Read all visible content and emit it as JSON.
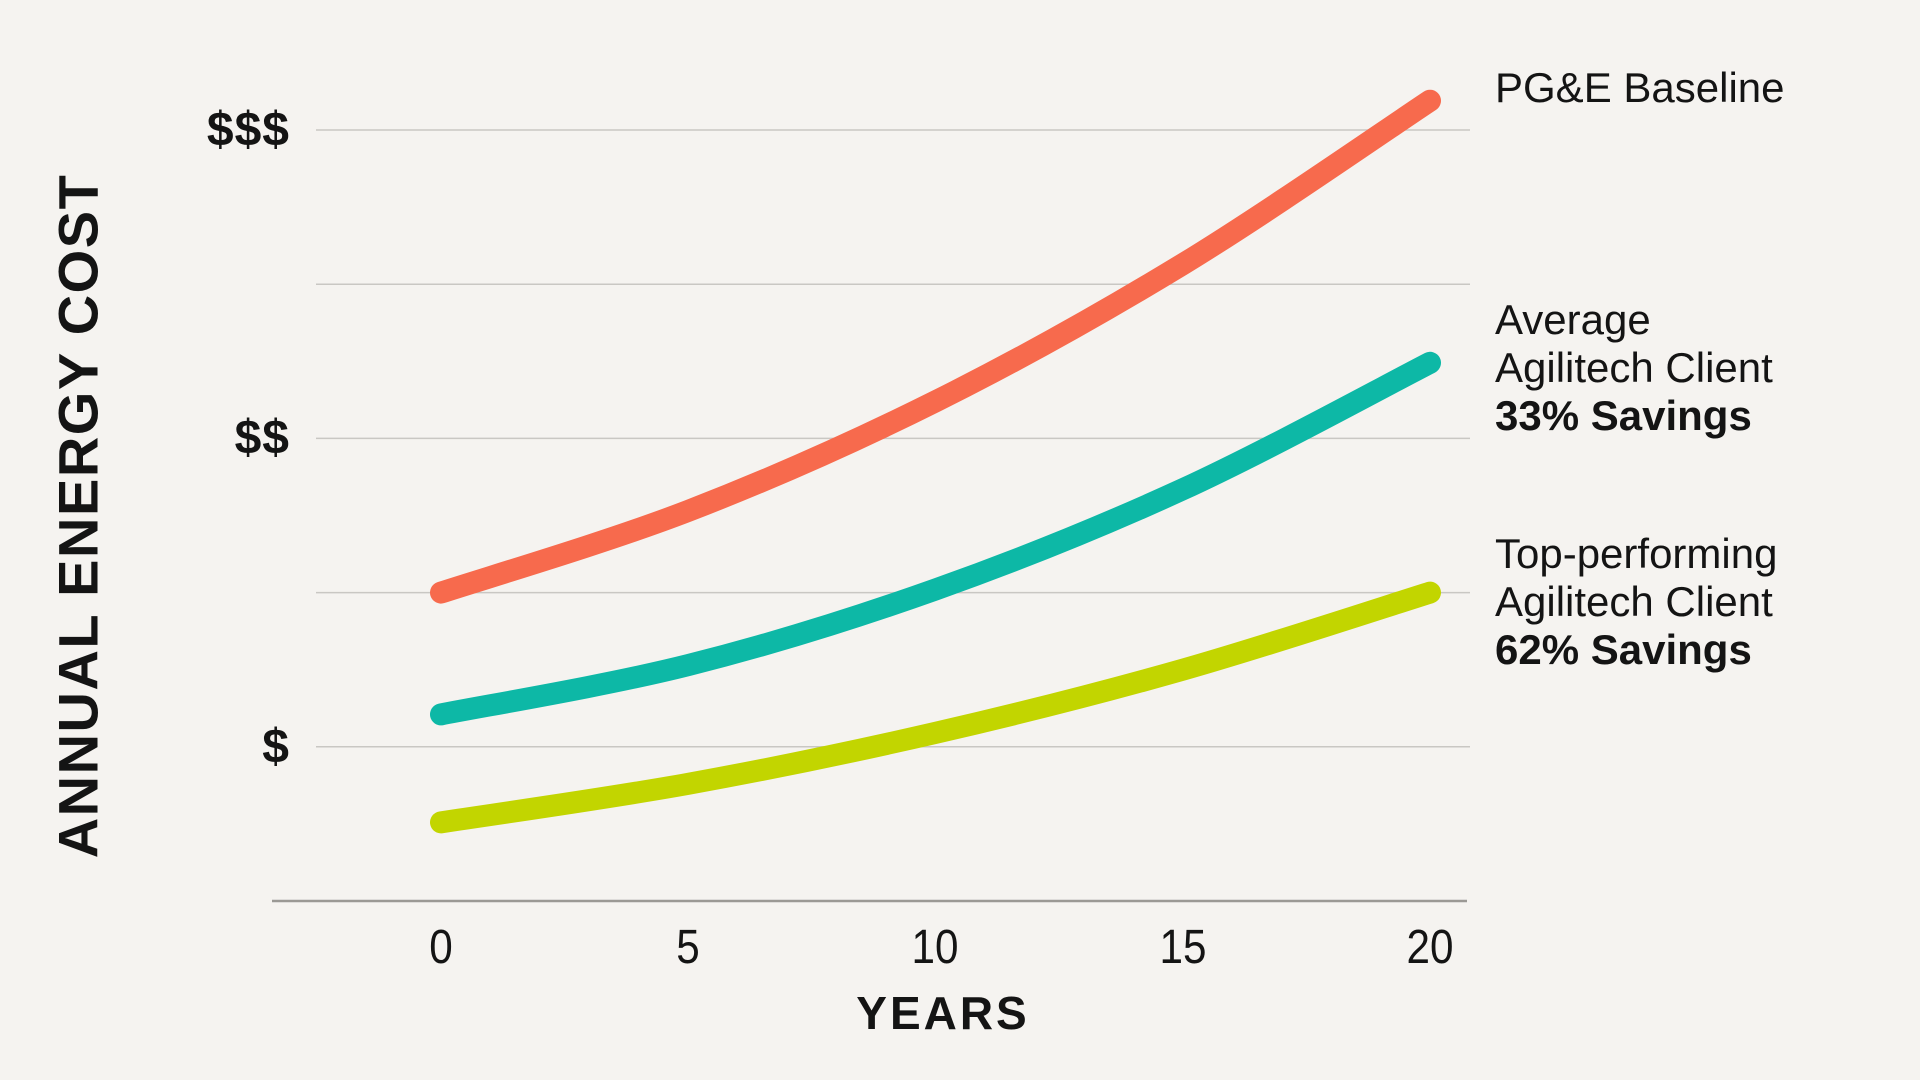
{
  "page": {
    "background_color": "#F5F3F0",
    "text_color": "#141414",
    "gridline_color": "#C9C7C3",
    "axis_line_color": "#9B9995"
  },
  "y_axis": {
    "title": "ANNUAL ENERGY COST",
    "tick_labels_top_to_bottom": [
      "$$$",
      "$$",
      "$"
    ]
  },
  "x_axis": {
    "title": "YEARS",
    "tick_labels": [
      "0",
      "5",
      "10",
      "15",
      "20"
    ]
  },
  "legend": [
    {
      "lines": [
        "PG&E Baseline"
      ],
      "emphasis": "",
      "color": "#F76A4D"
    },
    {
      "lines": [
        "Average",
        "Agilitech Client"
      ],
      "emphasis": "33% Savings",
      "color": "#0DB8A6"
    },
    {
      "lines": [
        "Top-performing",
        "Agilitech Client"
      ],
      "emphasis": "62% Savings",
      "color": "#C2D500"
    }
  ],
  "chart_data": {
    "type": "line",
    "title": "",
    "xlabel": "YEARS",
    "ylabel": "ANNUAL ENERGY COST",
    "x": [
      0,
      5,
      10,
      15,
      20
    ],
    "xlim": [
      0,
      20
    ],
    "ylim": [
      0,
      5.6
    ],
    "y_tick_values": [
      1,
      3,
      5
    ],
    "y_tick_labels": [
      "$",
      "$$",
      "$$$"
    ],
    "y_units": "qualitative dollar scale ($=1, $$=3, $$$=5 relative cost units)",
    "grid": "horizontal gridlines at y = 1,2,3,4,5; solid baseline axis at y=0",
    "legend_position": "right of plot, each label vertically aligned to its line endpoint",
    "line_style": "thick smooth curves, rounded caps, exponential-like growth",
    "series": [
      {
        "name": "PG&E Baseline",
        "annotation": "",
        "color": "#F76A4D",
        "values": [
          2.0,
          2.53,
          3.24,
          4.13,
          5.19
        ]
      },
      {
        "name": "Average Agilitech Client",
        "annotation": "33% Savings",
        "color": "#0DB8A6",
        "values": [
          1.21,
          1.53,
          2.02,
          2.67,
          3.49
        ]
      },
      {
        "name": "Top-performing Agilitech Client",
        "annotation": "62% Savings",
        "color": "#C2D500",
        "values": [
          0.51,
          0.76,
          1.09,
          1.5,
          2.0
        ]
      }
    ]
  }
}
